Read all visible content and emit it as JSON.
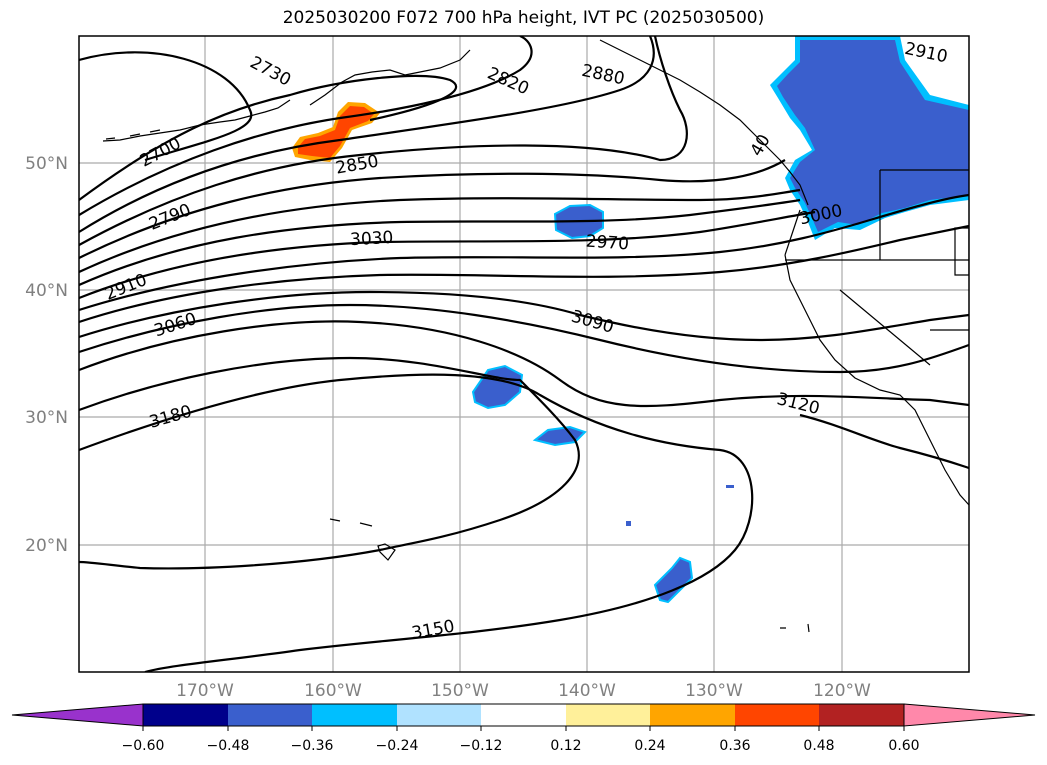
{
  "title": "2025030200 F072 700 hPa height, IVT PC (2025030500)",
  "lat_labels": [
    "50°N",
    "40°N",
    "30°N",
    "20°N"
  ],
  "lon_labels": [
    "170°W",
    "160°W",
    "150°W",
    "140°W",
    "130°W",
    "120°W"
  ],
  "contour_labels": [
    "2730",
    "2700",
    "2790",
    "2910",
    "3060",
    "3180",
    "2820",
    "2880",
    "2850",
    "3030",
    "2970",
    "3090",
    "3120",
    "3150",
    "3000",
    "2910",
    "40"
  ],
  "colorbar": {
    "tick_labels": [
      "−0.60",
      "−0.48",
      "−0.36",
      "−0.24",
      "−0.12",
      "0.12",
      "0.24",
      "0.36",
      "0.48",
      "0.60"
    ],
    "colors": [
      "#9932cc",
      "#00008b",
      "#3a5fcd",
      "#00bfff",
      "#b0e2ff",
      "#ffffff",
      "#fff09a",
      "#ffa500",
      "#ff4500",
      "#b22222",
      "#ff88aa"
    ]
  }
}
